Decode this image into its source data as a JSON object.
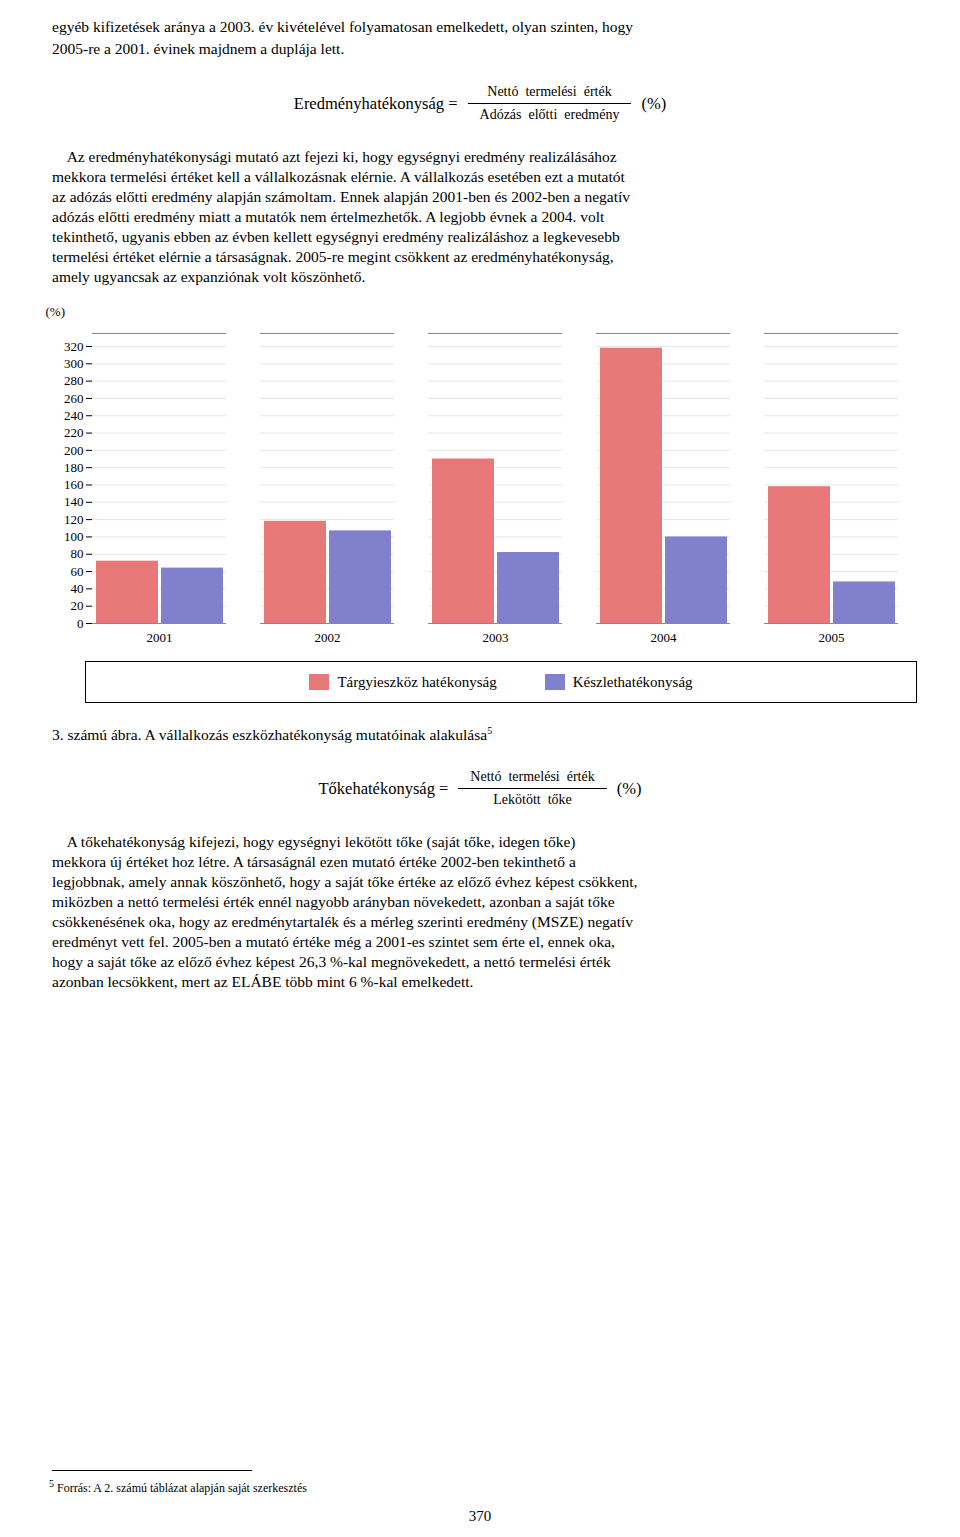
{
  "chart_data": {
    "type": "bar",
    "title": "3. számú ábra. A vállalkozás eszközhatékonyság mutatóinak alakulása",
    "ylabel": "(%)",
    "categories": [
      "2001",
      "2002",
      "2003",
      "2004",
      "2005"
    ],
    "series": [
      {
        "name": "Tárgyieszköz hatékonyság",
        "color": "#E87878",
        "values": [
          72,
          118,
          190,
          318,
          158
        ]
      },
      {
        "name": "Készlethatékonyság",
        "color": "#8080CC",
        "values": [
          64,
          107,
          82,
          100,
          48
        ]
      }
    ],
    "ylim": [
      0,
      335
    ],
    "yticks": [
      0,
      20,
      40,
      60,
      80,
      100,
      120,
      140,
      160,
      180,
      200,
      220,
      240,
      260,
      280,
      300,
      320
    ],
    "grid": true,
    "legend": "bottom"
  },
  "page": {
    "intro": [
      "egyéb kifizetések aránya a 2003. év kivételével folyamatosan emelkedett, olyan szinten, hogy",
      "2005-re a 2001. évinek majdnem a duplája lett."
    ],
    "formula1": {
      "left": "Eredményhatékonyság =",
      "num": "Nettó  termelési  érték",
      "den": "Adózás  előtti  eredmény",
      "pct": "(%)"
    },
    "body": [
      "    Az eredményhatékonysági mutató azt fejezi ki, hogy egységnyi eredmény realizálásához",
      "mekkora termelési értéket kell a vállalkozásnak elérnie. A vállalkozás esetében ezt a mutatót",
      "az adózás előtti eredmény alapján számoltam. Ennek alapján 2001-ben és 2002-ben a negatív",
      "adózás előtti eredmény miatt a mutatók nem értelmezhetők. A legjobb évnek a 2004. volt",
      "tekinthető, ugyanis ebben az évben kellett egységnyi eredmény realizáláshoz a legkevesebb",
      "termelési értéket elérnie a társaságnak. 2005-re megint csökkent az eredményhatékonyság,",
      "amely ugyancsak az expanziónak volt köszönhető."
    ],
    "caption_sup": "5",
    "formula2": {
      "left": "Tőkehatékonyság =",
      "num": "Nettó  termelési  érték",
      "den": "Lekötött  tőke",
      "pct": "(%)"
    },
    "toke": [
      "    A tőkehatékonyság kifejezi, hogy egységnyi lekötött tőke (saját tőke, idegen tőke)",
      "mekkora új értéket hoz létre. A társaságnál ezen mutató értéke 2002-ben tekinthető a",
      "legjobbnak, amely annak köszönhető, hogy a saját tőke értéke az előző évhez képest csökkent,",
      "miközben a nettó termelési érték ennél nagyobb arányban növekedett, azonban a saját tőke",
      "csökkenésének oka, hogy az eredménytartalék és a mérleg szerinti eredmény (MSZE) negatív",
      "eredményt vett fel. 2005-ben a mutató értéke még a 2001-es szintet sem érte el, ennek oka,",
      "hogy a saját tőke az előző évhez képest 26,3 %-kal megnövekedett, a nettó termelési érték",
      "azonban lecsökkent, mert az ELÁBE több mint 6 %-kal emelkedett."
    ],
    "footnote_sup": "5",
    "footnote": " Forrás: A 2. számú táblázat alapján saját szerkesztés",
    "page_num": "370"
  }
}
